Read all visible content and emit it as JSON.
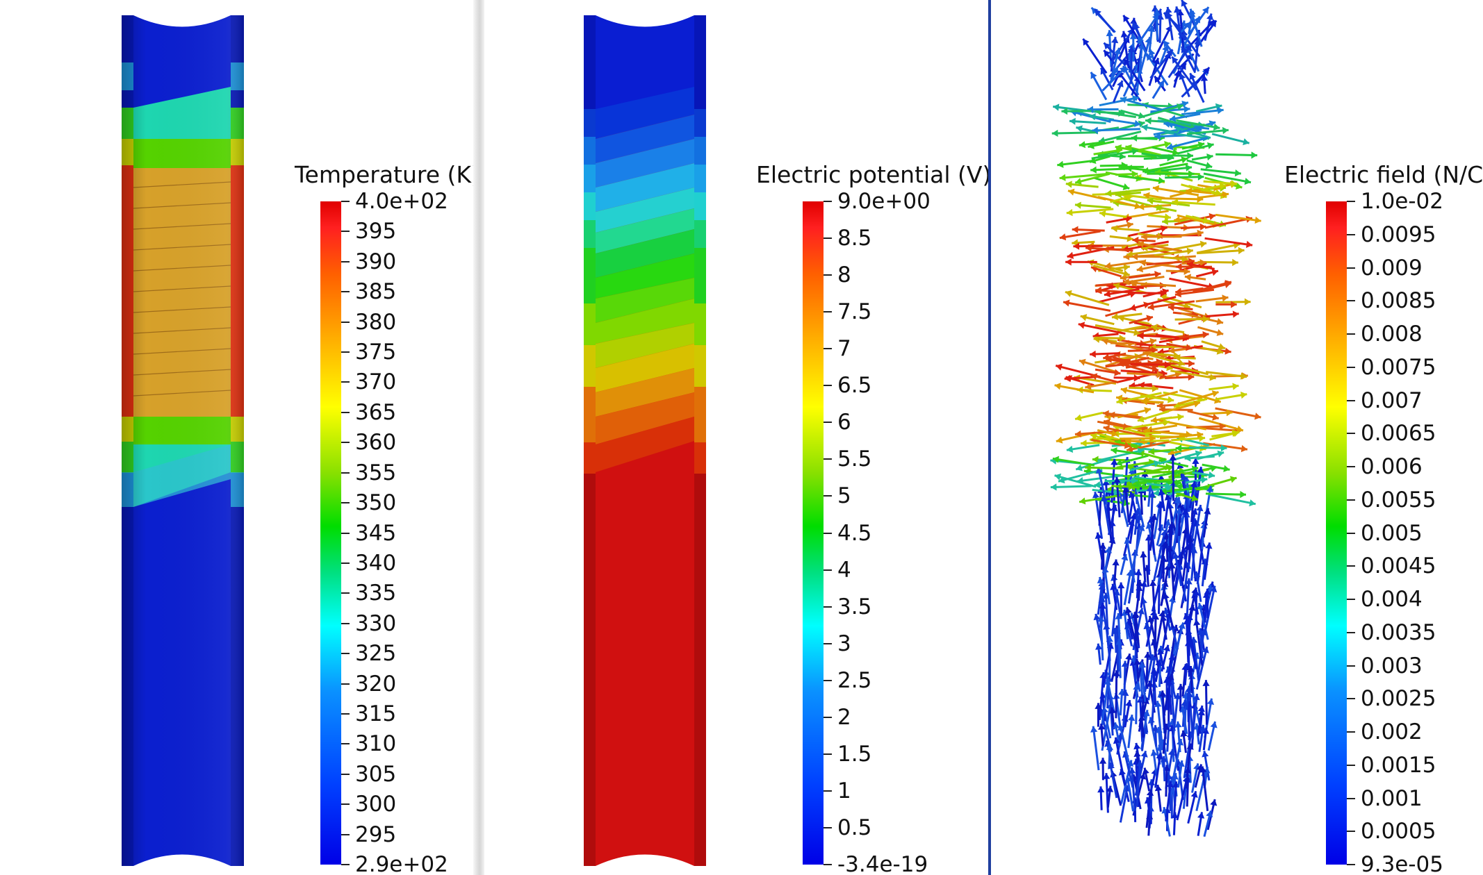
{
  "panels": [
    {
      "id": "temperature",
      "legend_title": "Temperature (K)",
      "ticks": [
        "4.0e+02",
        "395",
        "390",
        "385",
        "380",
        "375",
        "370",
        "365",
        "360",
        "355",
        "350",
        "345",
        "340",
        "335",
        "330",
        "325",
        "320",
        "315",
        "310",
        "305",
        "300",
        "295",
        "2.9e+02"
      ]
    },
    {
      "id": "potential",
      "legend_title": "Electric potential (V)",
      "ticks": [
        "9.0e+00",
        "8.5",
        "8",
        "7.5",
        "7",
        "6.5",
        "6",
        "5.5",
        "5",
        "4.5",
        "4",
        "3.5",
        "3",
        "2.5",
        "2",
        "1.5",
        "1",
        "0.5",
        "-3.4e-19"
      ]
    },
    {
      "id": "field",
      "legend_title": "Electric field (N/C)",
      "ticks": [
        "1.0e-02",
        "0.0095",
        "0.009",
        "0.0085",
        "0.008",
        "0.0075",
        "0.007",
        "0.0065",
        "0.006",
        "0.0055",
        "0.005",
        "0.0045",
        "0.004",
        "0.0035",
        "0.003",
        "0.0025",
        "0.002",
        "0.0015",
        "0.001",
        "0.0005",
        "9.3e-05"
      ]
    }
  ],
  "colors": {
    "cold": "#0a1ed2",
    "hot": "#d01010",
    "warm": "#d7a12a",
    "separator": "#1f3f9f"
  }
}
